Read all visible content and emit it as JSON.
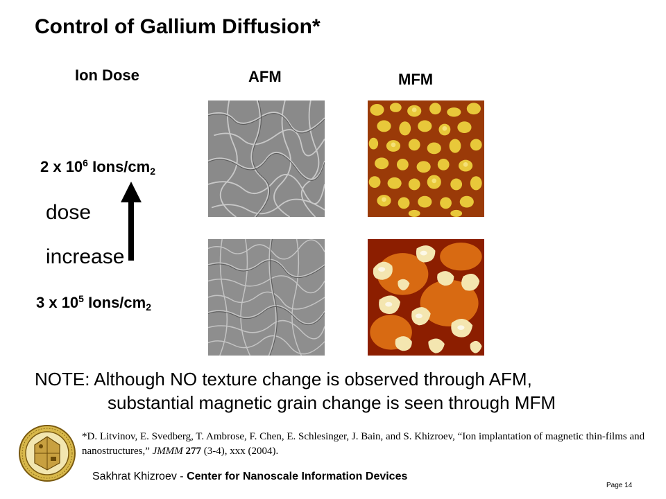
{
  "slide": {
    "title": "Control of Gallium Diffusion*",
    "columns": {
      "dose": "Ion Dose",
      "afm": "AFM",
      "mfm": "MFM"
    },
    "dose_high": {
      "coef": "2 x 10",
      "exp": "6",
      "unit": " Ions/cm",
      "unit_exp": "2"
    },
    "dose_low": {
      "coef": "3 x 10",
      "exp": "5",
      "unit": " Ions/cm",
      "unit_exp": "2"
    },
    "arrow_label": {
      "line1": "dose",
      "line2": "increase"
    },
    "note": {
      "line1": "NOTE: Although NO texture change is observed through AFM,",
      "line2": "substantial magnetic grain change is seen through MFM"
    },
    "citation": {
      "authors": "*D. Litvinov, E. Svedberg, T. Ambrose, F. Chen, E. Schlesinger, J. Bain, and S. Khizroev, ",
      "paper_title": "“Ion implantation of magnetic thin-films and nanostructures,” ",
      "journal": "JMMM",
      "volume": " 277",
      "rest": " (3-4), xxx (2004)."
    }
  },
  "footer": {
    "author": "Sakhrat Khizroev - ",
    "org": "Center for Nanoscale Information Devices",
    "page": "Page 14"
  },
  "colors": {
    "mfm_dark": "#7a1a00",
    "mfm_light": "#f0d830",
    "afm_gray": "#8c8c8c"
  }
}
